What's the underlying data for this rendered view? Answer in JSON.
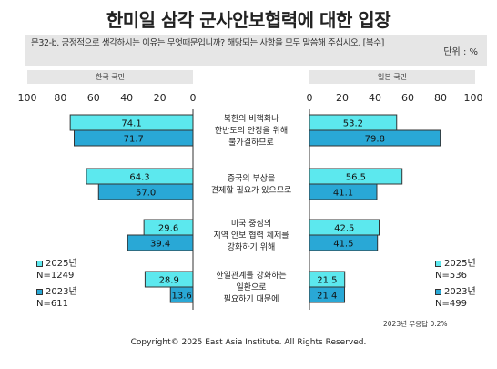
{
  "title": "한미일 삼각 군사안보협력에 대한 입장",
  "question": "문32-b. 긍정적으로 생각하시는 이유는 무엇때문입니까? 해당되는 사항을 모두 말씀해 주십시오. [복수]",
  "unit": "단위 : %",
  "note": "2023년 무응답 0.2%",
  "footer": "Copyright© 2025 East Asia Institute. All Rights Reserved.",
  "colors": {
    "y2025": "#5ce8ee",
    "y2023": "#29a8d6",
    "stroke": "#333333"
  },
  "chart_data": [
    {
      "type": "bar",
      "title": "한국 국민",
      "direction": "left",
      "xlim": [
        0,
        100
      ],
      "ticks": [
        "100",
        "80",
        "60",
        "40",
        "20",
        "0"
      ],
      "categories": [
        "북한의 비핵화나\n한반도의 안정을 위해\n불가결하므로",
        "중국의 부상을\n견제할 필요가 있으므로",
        "미국 중심의\n지역 안보 협력 체제를\n강화하기 위해",
        "한일관계를 강화하는\n일환으로\n필요하기 때문에"
      ],
      "series": [
        {
          "name": "2025년",
          "values": [
            74.1,
            64.3,
            29.6,
            28.9
          ]
        },
        {
          "name": "2023년",
          "values": [
            71.7,
            57.0,
            39.4,
            13.6
          ]
        }
      ],
      "legend": {
        "position": "bottom-left",
        "items": [
          {
            "label": "2025년",
            "n": "N=1249"
          },
          {
            "label": "2023년",
            "n": "N=611"
          }
        ]
      }
    },
    {
      "type": "bar",
      "title": "일본 국민",
      "direction": "right",
      "xlim": [
        0,
        100
      ],
      "ticks": [
        "0",
        "20",
        "40",
        "60",
        "80",
        "100"
      ],
      "categories": [
        "북한의 비핵화나\n한반도의 안정을 위해\n불가결하므로",
        "중국의 부상을\n견제할 필요가 있으므로",
        "미국 중심의\n지역 안보 협력 체제를\n강화하기 위해",
        "한일관계를 강화하는\n일환으로\n필요하기 때문에"
      ],
      "series": [
        {
          "name": "2025년",
          "values": [
            53.2,
            56.5,
            42.5,
            21.5
          ]
        },
        {
          "name": "2023년",
          "values": [
            79.8,
            41.1,
            41.5,
            21.4
          ]
        }
      ],
      "legend": {
        "position": "bottom-right",
        "items": [
          {
            "label": "2025년",
            "n": "N=536"
          },
          {
            "label": "2023년",
            "n": "N=499"
          }
        ]
      }
    }
  ]
}
